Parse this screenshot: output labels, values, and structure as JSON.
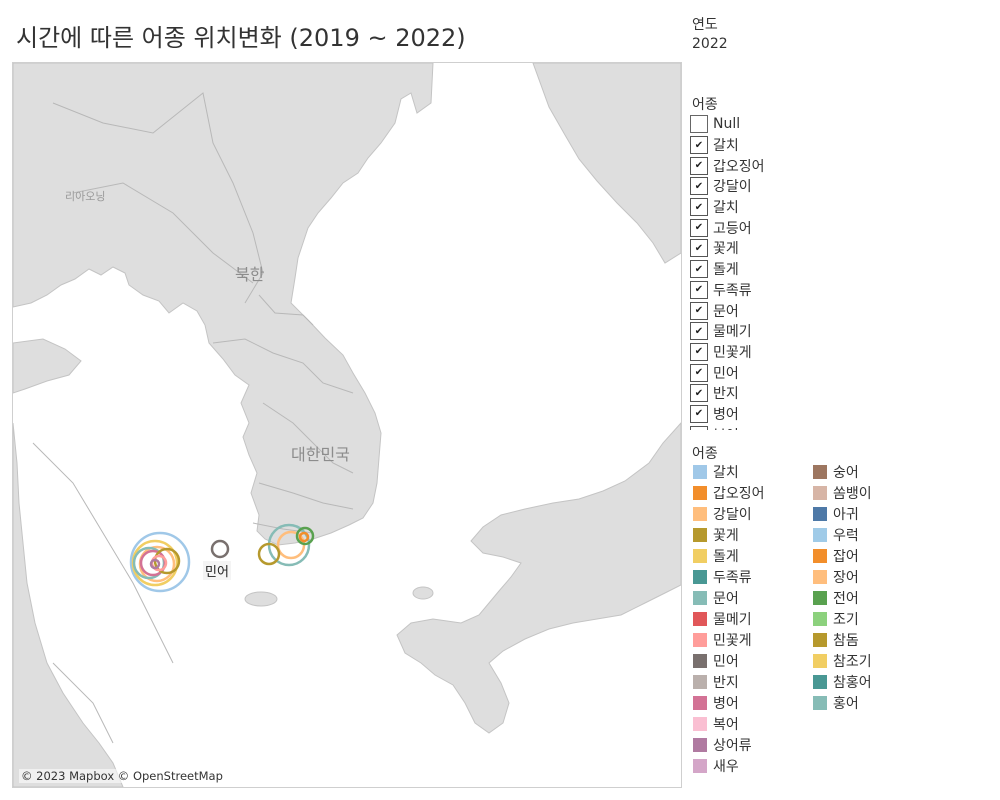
{
  "title": "시간에 따른 어종 위치변화 (2019 ~ 2022)",
  "map": {
    "place_labels": {
      "liaoning": "리아오닝",
      "north_korea": "북한",
      "south_korea": "대한민국"
    },
    "attribution": "© 2023 Mapbox © OpenStreetMap",
    "mark_label": "민어"
  },
  "year_filter": {
    "title": "연도",
    "value": "2022"
  },
  "species_filter": {
    "title": "어종",
    "items": [
      {
        "label": "Null",
        "checked": false
      },
      {
        "label": "갈치",
        "checked": true
      },
      {
        "label": "갑오징어",
        "checked": true
      },
      {
        "label": "강달이",
        "checked": true
      },
      {
        "label": "갈치",
        "checked": true
      },
      {
        "label": "고등어",
        "checked": true
      },
      {
        "label": "꽃게",
        "checked": true
      },
      {
        "label": "돌게",
        "checked": true
      },
      {
        "label": "두족류",
        "checked": true
      },
      {
        "label": "문어",
        "checked": true
      },
      {
        "label": "물메기",
        "checked": true
      },
      {
        "label": "민꽃게",
        "checked": true
      },
      {
        "label": "민어",
        "checked": true
      },
      {
        "label": "반지",
        "checked": true
      },
      {
        "label": "병어",
        "checked": true
      },
      {
        "label": "복어",
        "checked": true
      }
    ]
  },
  "color_legend": {
    "title": "어종",
    "col1": [
      {
        "label": "갈치",
        "color": "#a0c8e8"
      },
      {
        "label": "갑오징어",
        "color": "#f28e2b"
      },
      {
        "label": "강달이",
        "color": "#ffbe7d"
      },
      {
        "label": "꽃게",
        "color": "#b6992d"
      },
      {
        "label": "돌게",
        "color": "#f1ce63"
      },
      {
        "label": "두족류",
        "color": "#499894"
      },
      {
        "label": "문어",
        "color": "#86bcb6"
      },
      {
        "label": "물메기",
        "color": "#e15759"
      },
      {
        "label": "민꽃게",
        "color": "#ff9d9a"
      },
      {
        "label": "민어",
        "color": "#79706e"
      },
      {
        "label": "반지",
        "color": "#bab0ac"
      },
      {
        "label": "병어",
        "color": "#d37295"
      },
      {
        "label": "복어",
        "color": "#fabfd2"
      },
      {
        "label": "상어류",
        "color": "#b07aa1"
      },
      {
        "label": "새우",
        "color": "#d4a6c8"
      }
    ],
    "col2": [
      {
        "label": "숭어",
        "color": "#9d7660"
      },
      {
        "label": "쏨뱅이",
        "color": "#d7b5a6"
      },
      {
        "label": "아귀",
        "color": "#4e79a7"
      },
      {
        "label": "우럭",
        "color": "#a0cbe8"
      },
      {
        "label": "잡어",
        "color": "#f28e2b"
      },
      {
        "label": "장어",
        "color": "#ffbe7d"
      },
      {
        "label": "전어",
        "color": "#59a14f"
      },
      {
        "label": "조기",
        "color": "#8cd17d"
      },
      {
        "label": "참돔",
        "color": "#b6992d"
      },
      {
        "label": "참조기",
        "color": "#f1ce63"
      },
      {
        "label": "참홍어",
        "color": "#499894"
      },
      {
        "label": "홍어",
        "color": "#86bcb6"
      }
    ]
  },
  "map_colors": {
    "sea": "#ffffff",
    "land": "#dedede",
    "border": "#b8b8b8"
  }
}
